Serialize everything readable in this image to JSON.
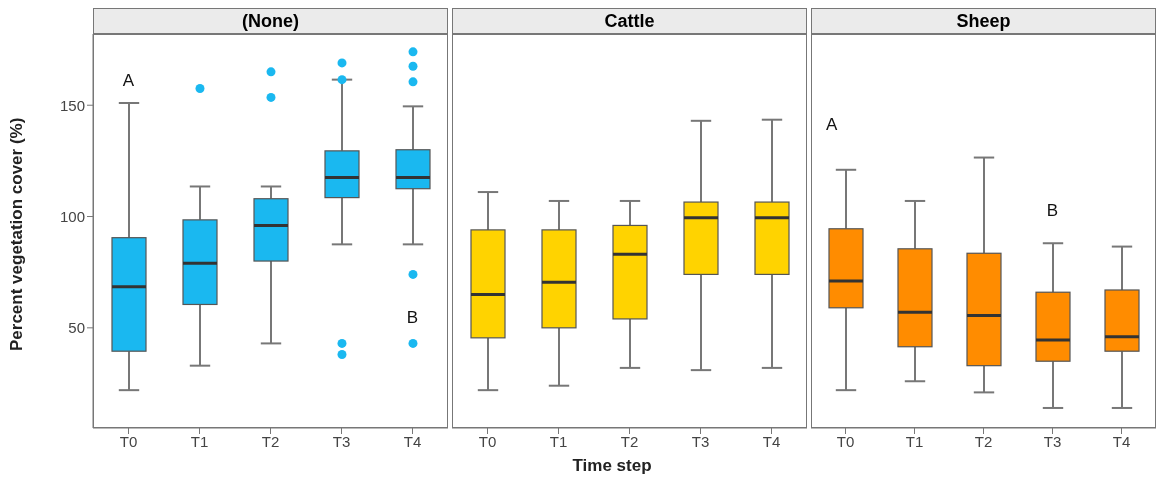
{
  "chart_data": [
    {
      "type": "box",
      "title": "(None)",
      "ylabel": "Percent vegetation cover (%)",
      "categories": [
        "T0",
        "T1",
        "T2",
        "T3",
        "T4"
      ],
      "ylim": [
        5,
        182
      ],
      "yticks": [
        50,
        100,
        150
      ],
      "grid": false,
      "series": [
        {
          "color": "#1ab8f0",
          "boxes": [
            {
              "low": 22,
              "q1": 39.5,
              "median": 68.5,
              "q3": 90.5,
              "high": 151
            },
            {
              "low": 33,
              "q1": 60.5,
              "median": 79,
              "q3": 98.5,
              "high": 113.5,
              "outliers": [
                157.5
              ]
            },
            {
              "low": 43,
              "q1": 80,
              "median": 96,
              "q3": 108,
              "high": 113.5,
              "outliers": [
                153.5,
                165
              ]
            },
            {
              "low": 87.5,
              "q1": 108.5,
              "median": 117.5,
              "q3": 129.5,
              "high": 161.5,
              "outliers": [
                38,
                43,
                161.5,
                169
              ]
            },
            {
              "low": 87.5,
              "q1": 112.5,
              "median": 117.5,
              "q3": 130,
              "high": 149.5,
              "outliers": [
                43,
                74,
                160.5,
                167.5,
                174
              ]
            }
          ]
        }
      ],
      "annotations": [
        "A",
        "B"
      ]
    },
    {
      "type": "box",
      "title": "Cattle",
      "xlabel": "Time step",
      "categories": [
        "T0",
        "T1",
        "T2",
        "T3",
        "T4"
      ],
      "ylim": [
        5,
        182
      ],
      "yticks": [
        50,
        100,
        150
      ],
      "grid": false,
      "tick_labels": "x",
      "series": [
        {
          "color": "#ffd300",
          "boxes": [
            {
              "low": 22,
              "q1": 45.5,
              "median": 65,
              "q3": 94,
              "high": 111
            },
            {
              "low": 24,
              "q1": 50,
              "median": 70.5,
              "q3": 94,
              "high": 107
            },
            {
              "low": 32,
              "q1": 54,
              "median": 83,
              "q3": 96,
              "high": 107
            },
            {
              "low": 31,
              "q1": 74,
              "median": 99.5,
              "q3": 106.5,
              "high": 143
            },
            {
              "low": 32,
              "q1": 74,
              "median": 99.5,
              "q3": 106.5,
              "high": 143.5
            }
          ]
        }
      ]
    },
    {
      "type": "box",
      "title": "Sheep",
      "categories": [
        "T0",
        "T1",
        "T2",
        "T3",
        "T4"
      ],
      "ylim": [
        5,
        182
      ],
      "yticks": [
        50,
        100,
        150
      ],
      "grid": false,
      "tick_labels": "x",
      "series": [
        {
          "color": "#ff8c00",
          "boxes": [
            {
              "low": 22,
              "q1": 59,
              "median": 71,
              "q3": 94.5,
              "high": 121
            },
            {
              "low": 26,
              "q1": 41.5,
              "median": 57,
              "q3": 85.5,
              "high": 107
            },
            {
              "low": 21,
              "q1": 33,
              "median": 55.5,
              "q3": 83.5,
              "high": 126.5
            },
            {
              "low": 14,
              "q1": 35,
              "median": 44.5,
              "q3": 66,
              "high": 88
            },
            {
              "low": 14,
              "q1": 39.5,
              "median": 46,
              "q3": 67,
              "high": 86.5
            }
          ]
        }
      ],
      "annotations": [
        "A",
        "B"
      ]
    }
  ]
}
